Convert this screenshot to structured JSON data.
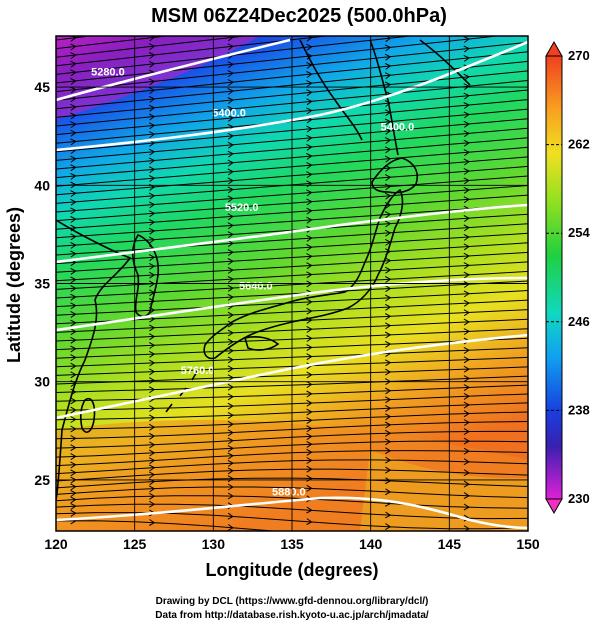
{
  "title": "MSM 06Z24Dec2025 (500.0hPa)",
  "axes": {
    "xlabel": "Longitude (degrees)",
    "ylabel": "Latitude  (degrees)",
    "xlim": [
      120,
      150
    ],
    "ylim": [
      22.4,
      47.6
    ],
    "xticks": [
      "120",
      "125",
      "130",
      "135",
      "140",
      "145",
      "150"
    ],
    "yticks": [
      "25",
      "30",
      "35",
      "40",
      "45"
    ]
  },
  "colorbar": {
    "min": 230,
    "max": 270,
    "labels": [
      "270",
      "262",
      "254",
      "246",
      "238",
      "230"
    ]
  },
  "contours": [
    {
      "label": "5280.0",
      "lon": 123.3,
      "lat": 45.6
    },
    {
      "label": "5400.0",
      "lon": 131.0,
      "lat": 43.5
    },
    {
      "label": "5400.0",
      "lon": 141.7,
      "lat": 42.8
    },
    {
      "label": "5520.0",
      "lon": 131.8,
      "lat": 38.7
    },
    {
      "label": "5640.0",
      "lon": 132.7,
      "lat": 34.7
    },
    {
      "label": "5760.0",
      "lon": 129.0,
      "lat": 30.4
    },
    {
      "label": "5880.0",
      "lon": 134.8,
      "lat": 24.2
    }
  ],
  "credits": {
    "line1": "Drawing by DCL (https://www.gfd-dennou.org/library/dcl/)",
    "line2": "Data from http://database.rish.kyoto-u.ac.jp/arch/jmadata/"
  }
}
